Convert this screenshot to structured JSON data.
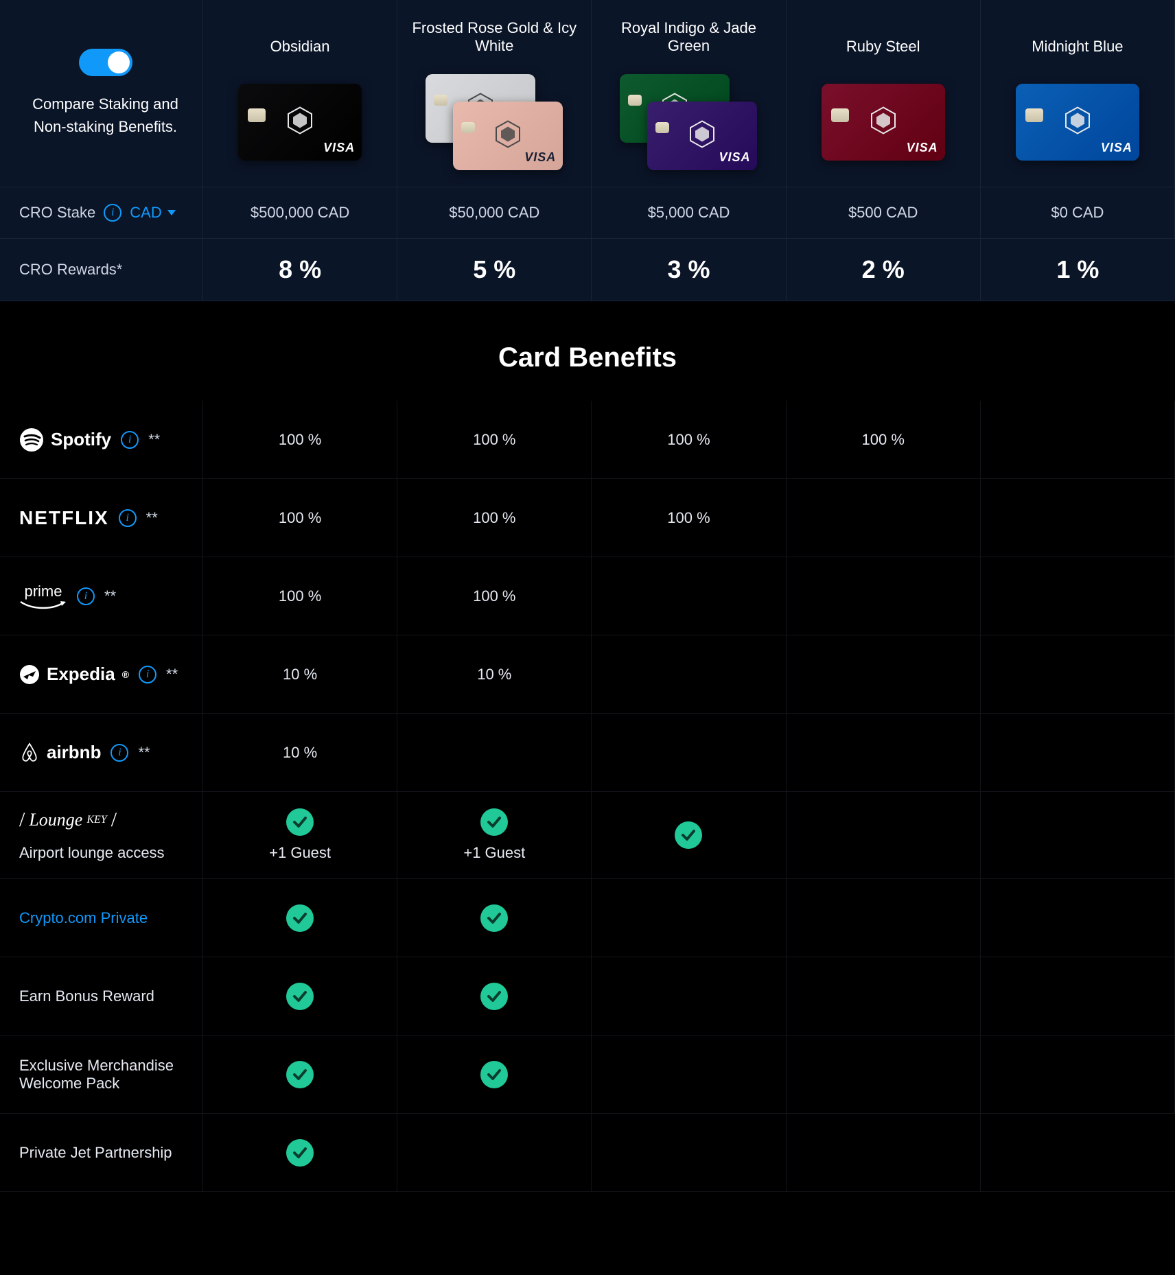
{
  "columns": [
    "obsidian",
    "rose_icy",
    "indigo_jade",
    "ruby",
    "midnight"
  ],
  "header": {
    "toggle_on": true,
    "compare_label": "Compare Staking and Non-staking Benefits."
  },
  "cards": {
    "obsidian": {
      "name": "Obsidian",
      "style": "single",
      "colors": [
        "#0b0b0d"
      ],
      "visa_dark": false
    },
    "rose_icy": {
      "name": "Frosted Rose Gold & Icy White",
      "style": "dual",
      "colors": [
        "#d9dadd",
        "#e8b9ac"
      ],
      "visa_dark": true
    },
    "indigo_jade": {
      "name": "Royal Indigo & Jade Green",
      "style": "dual",
      "colors": [
        "#0e5a2f",
        "#3a1e6e"
      ],
      "visa_dark": false
    },
    "ruby": {
      "name": "Ruby Steel",
      "style": "single",
      "colors": [
        "#7a0f2b"
      ],
      "visa_dark": false
    },
    "midnight": {
      "name": "Midnight Blue",
      "style": "single",
      "colors": [
        "#0a5fb5"
      ],
      "visa_dark": false
    }
  },
  "stake": {
    "label": "CRO Stake",
    "currency": "CAD",
    "values": {
      "obsidian": "$500,000 CAD",
      "rose_icy": "$50,000 CAD",
      "indigo_jade": "$5,000 CAD",
      "ruby": "$500 CAD",
      "midnight": "$0 CAD"
    }
  },
  "rewards": {
    "label": "CRO Rewards*",
    "values": {
      "obsidian": "8 %",
      "rose_icy": "5 %",
      "indigo_jade": "3 %",
      "ruby": "2 %",
      "midnight": "1 %"
    }
  },
  "benefits_title": "Card Benefits",
  "benefits": [
    {
      "key": "spotify",
      "brand": "Spotify",
      "info": true,
      "stars": "**",
      "values": {
        "obsidian": "100 %",
        "rose_icy": "100 %",
        "indigo_jade": "100 %",
        "ruby": "100 %",
        "midnight": ""
      }
    },
    {
      "key": "netflix",
      "brand": "NETFLIX",
      "info": true,
      "stars": "**",
      "values": {
        "obsidian": "100 %",
        "rose_icy": "100 %",
        "indigo_jade": "100 %",
        "ruby": "",
        "midnight": ""
      }
    },
    {
      "key": "prime",
      "brand": "prime",
      "info": true,
      "stars": "**",
      "values": {
        "obsidian": "100 %",
        "rose_icy": "100 %",
        "indigo_jade": "",
        "ruby": "",
        "midnight": ""
      }
    },
    {
      "key": "expedia",
      "brand": "Expedia",
      "info": true,
      "stars": "**",
      "values": {
        "obsidian": "10 %",
        "rose_icy": "10 %",
        "indigo_jade": "",
        "ruby": "",
        "midnight": ""
      }
    },
    {
      "key": "airbnb",
      "brand": "airbnb",
      "info": true,
      "stars": "**",
      "values": {
        "obsidian": "10 %",
        "rose_icy": "",
        "indigo_jade": "",
        "ruby": "",
        "midnight": ""
      }
    },
    {
      "key": "lounge",
      "brand": "LoungeKey",
      "sublabel": "Airport lounge access",
      "info": false,
      "values": {
        "obsidian": "check",
        "rose_icy": "check",
        "indigo_jade": "check",
        "ruby": "",
        "midnight": ""
      },
      "subvalues": {
        "obsidian": "+1 Guest",
        "rose_icy": "+1 Guest",
        "indigo_jade": "",
        "ruby": "",
        "midnight": ""
      }
    },
    {
      "key": "private",
      "brand": "Crypto.com Private",
      "is_link": true,
      "info": false,
      "values": {
        "obsidian": "check",
        "rose_icy": "check",
        "indigo_jade": "",
        "ruby": "",
        "midnight": ""
      }
    },
    {
      "key": "bonus",
      "brand": "Earn Bonus Reward",
      "plain": true,
      "info": false,
      "values": {
        "obsidian": "check",
        "rose_icy": "check",
        "indigo_jade": "",
        "ruby": "",
        "midnight": ""
      }
    },
    {
      "key": "merch",
      "brand": "Exclusive Merchandise Welcome Pack",
      "plain": true,
      "info": false,
      "values": {
        "obsidian": "check",
        "rose_icy": "check",
        "indigo_jade": "",
        "ruby": "",
        "midnight": ""
      }
    },
    {
      "key": "jet",
      "brand": "Private Jet Partnership",
      "plain": true,
      "info": false,
      "values": {
        "obsidian": "check",
        "rose_icy": "",
        "indigo_jade": "",
        "ruby": "",
        "midnight": ""
      }
    }
  ],
  "colors": {
    "accent": "#1199fa",
    "check": "#20c997",
    "panel_bg": "#0b1528",
    "border": "rgba(70,80,100,0.25)"
  }
}
